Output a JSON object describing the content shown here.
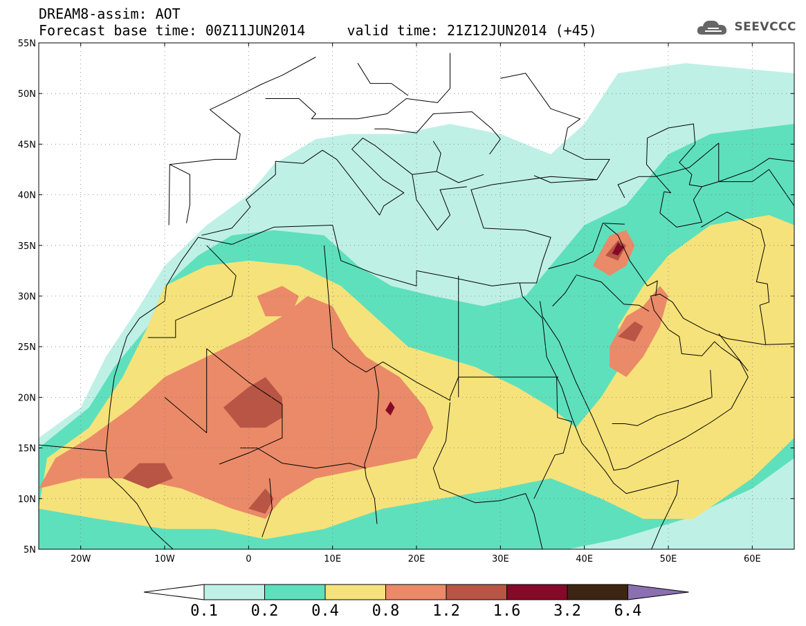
{
  "header": {
    "line1": "DREAM8-assim: AOT",
    "line2": "Forecast base time: 00Z11JUN2014     valid time: 21Z12JUN2014 (+45)",
    "brand": "SEEVCCC",
    "brand_icon": "cloud-logo-icon"
  },
  "chart_data": {
    "type": "heatmap",
    "title": "DREAM8-assim: AOT",
    "lon_range": [
      -25,
      65
    ],
    "lat_range": [
      5,
      55
    ],
    "x_ticks": [
      "20W",
      "10W",
      "0",
      "10E",
      "20E",
      "30E",
      "40E",
      "50E",
      "60E"
    ],
    "y_ticks": [
      "5N",
      "10N",
      "15N",
      "20N",
      "25N",
      "30N",
      "35N",
      "40N",
      "45N",
      "50N",
      "55N"
    ],
    "x_tick_values": [
      -20,
      -10,
      0,
      10,
      20,
      30,
      40,
      50,
      60
    ],
    "y_tick_values": [
      5,
      10,
      15,
      20,
      25,
      30,
      35,
      40,
      45,
      50,
      55
    ],
    "colorbar": {
      "labels": [
        "0.1",
        "0.2",
        "0.4",
        "0.8",
        "1.2",
        "1.6",
        "3.2",
        "6.4"
      ],
      "colors": [
        "#ffffff",
        "#bff0e6",
        "#5ee0bd",
        "#f6e27a",
        "#ea8a68",
        "#b85544",
        "#850a28",
        "#3d2513",
        "#8a70b0"
      ]
    },
    "grid": true
  }
}
